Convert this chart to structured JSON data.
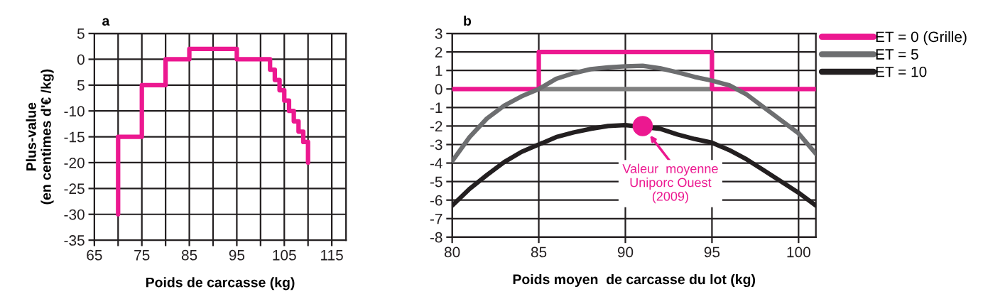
{
  "chart_data": [
    {
      "type": "step",
      "title": "a",
      "xlabel": "Poids de carcasse (kg)",
      "ylabel": "Plus-value\n(en centimes d'€ /kg)",
      "xlim": [
        65,
        118
      ],
      "ylim": [
        -35,
        5
      ],
      "xticks": [
        65,
        {
          "value": 70,
          "label": null
        },
        75,
        {
          "value": 80,
          "label": null
        },
        85,
        {
          "value": 90,
          "label": null
        },
        95,
        {
          "value": 100,
          "label": null
        },
        105,
        {
          "value": 110,
          "label": null
        },
        115
      ],
      "yticks": [
        -35,
        -30,
        -25,
        -20,
        -15,
        -10,
        {
          "value": -5,
          "label": "5"
        },
        0,
        5
      ],
      "grid": true,
      "series": [
        {
          "color": "#ec1890",
          "x": [
            70,
            70,
            75,
            80,
            85,
            95,
            102,
            103,
            104,
            105,
            106,
            107,
            108,
            109,
            110
          ],
          "values": [
            -30,
            -15,
            -5,
            0,
            2,
            0,
            -2,
            -4,
            -6,
            -8,
            -10,
            -12,
            -14,
            -16,
            -20
          ]
        }
      ]
    },
    {
      "type": "line",
      "title": "b",
      "xlabel": "Poids moyen  de carcasse du lot (kg)",
      "xlim": [
        80,
        101
      ],
      "ylim": [
        -8,
        3
      ],
      "xticks": [
        80,
        85,
        90,
        95,
        100
      ],
      "yticks": [
        -8,
        -7,
        -6,
        -5,
        -4,
        -3,
        -2,
        -1,
        0,
        1,
        2,
        3
      ],
      "grid": true,
      "legend": "top right",
      "series": [
        {
          "color": "#808080",
          "x": [
            85,
            95
          ],
          "values": [
            0,
            0
          ]
        },
        {
          "name": "ET = 0 (Grille)",
          "color": "#ec1890",
          "x": [
            80,
            85,
            85,
            95,
            95,
            101
          ],
          "values": [
            0,
            0,
            2,
            2,
            0,
            0
          ]
        },
        {
          "name": "ET = 5",
          "color": "#6d6e70",
          "x": [
            80,
            81,
            82,
            83,
            84,
            85,
            86,
            87,
            88,
            89,
            90,
            91,
            92,
            93,
            94,
            95,
            96,
            97,
            98,
            99,
            100,
            101
          ],
          "values": [
            -3.9,
            -2.6,
            -1.6,
            -0.9,
            -0.4,
            0,
            0.55,
            0.85,
            1.07,
            1.17,
            1.22,
            1.25,
            1.12,
            0.9,
            0.65,
            0.45,
            0.2,
            -0.3,
            -1.0,
            -1.7,
            -2.4,
            -3.5
          ]
        },
        {
          "name": "ET = 10",
          "color": "#231f20",
          "x": [
            80,
            81,
            82,
            83,
            84,
            85,
            86,
            87,
            88,
            89,
            90,
            92,
            93,
            94,
            95,
            96,
            97,
            98,
            99,
            100,
            101
          ],
          "values": [
            -6.3,
            -5.4,
            -4.65,
            -3.95,
            -3.4,
            -3.0,
            -2.6,
            -2.35,
            -2.15,
            -2.0,
            -1.95,
            -2.15,
            -2.45,
            -2.7,
            -2.9,
            -3.3,
            -3.8,
            -4.4,
            -5.0,
            -5.6,
            -6.3
          ]
        },
        {
          "type": "scatter",
          "color": "#ec1890",
          "x": [
            91
          ],
          "values": [
            -2
          ]
        }
      ],
      "annotations": [
        "Valeur  moyenne\nUniporc Ouest\n(2009)"
      ]
    }
  ]
}
